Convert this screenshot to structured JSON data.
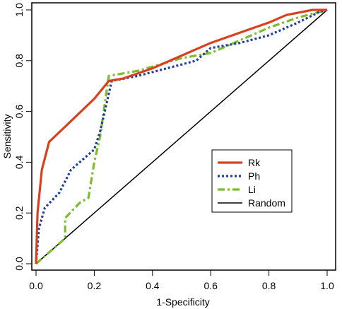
{
  "chart_data": {
    "type": "line",
    "title": "",
    "xlabel": "1-Specificity",
    "ylabel": "Sensitivity",
    "xlim": [
      0,
      1
    ],
    "ylim": [
      0,
      1
    ],
    "x_ticks": [
      "0.0",
      "0.2",
      "0.4",
      "0.6",
      "0.8",
      "1.0"
    ],
    "y_ticks": [
      "0.0",
      "0.2",
      "0.4",
      "0.6",
      "0.8",
      "1.0"
    ],
    "grid": false,
    "legend_position": "center-right",
    "series": [
      {
        "name": "Rk",
        "color": "#d9401e",
        "dash": "solid",
        "points": [
          [
            0,
            0
          ],
          [
            0.005,
            0.2
          ],
          [
            0.02,
            0.37
          ],
          [
            0.045,
            0.48
          ],
          [
            0.1,
            0.54
          ],
          [
            0.2,
            0.65
          ],
          [
            0.25,
            0.72
          ],
          [
            0.3,
            0.73
          ],
          [
            0.4,
            0.77
          ],
          [
            0.5,
            0.82
          ],
          [
            0.6,
            0.87
          ],
          [
            0.7,
            0.91
          ],
          [
            0.8,
            0.95
          ],
          [
            0.86,
            0.98
          ],
          [
            0.95,
            1.0
          ],
          [
            1.0,
            1.0
          ]
        ]
      },
      {
        "name": "Ph",
        "color": "#1f3f9a",
        "dash": "dotted",
        "points": [
          [
            0,
            0
          ],
          [
            0.01,
            0.14
          ],
          [
            0.03,
            0.22
          ],
          [
            0.08,
            0.28
          ],
          [
            0.12,
            0.37
          ],
          [
            0.2,
            0.45
          ],
          [
            0.22,
            0.52
          ],
          [
            0.24,
            0.62
          ],
          [
            0.26,
            0.72
          ],
          [
            0.35,
            0.74
          ],
          [
            0.55,
            0.8
          ],
          [
            0.6,
            0.85
          ],
          [
            0.7,
            0.87
          ],
          [
            0.8,
            0.9
          ],
          [
            0.9,
            0.95
          ],
          [
            0.97,
            0.99
          ],
          [
            1.0,
            1.0
          ]
        ]
      },
      {
        "name": "Li",
        "color": "#7cbd2e",
        "dash": "dashdot",
        "points": [
          [
            0,
            0
          ],
          [
            0.05,
            0.05
          ],
          [
            0.1,
            0.1
          ],
          [
            0.1,
            0.18
          ],
          [
            0.15,
            0.24
          ],
          [
            0.18,
            0.26
          ],
          [
            0.2,
            0.4
          ],
          [
            0.22,
            0.5
          ],
          [
            0.25,
            0.74
          ],
          [
            0.35,
            0.76
          ],
          [
            0.5,
            0.81
          ],
          [
            0.6,
            0.83
          ],
          [
            0.7,
            0.88
          ],
          [
            0.8,
            0.93
          ],
          [
            0.9,
            0.97
          ],
          [
            1.0,
            1.0
          ]
        ]
      },
      {
        "name": "Random",
        "color": "#000000",
        "dash": "solid",
        "points": [
          [
            0,
            0
          ],
          [
            1,
            1
          ]
        ]
      }
    ]
  }
}
